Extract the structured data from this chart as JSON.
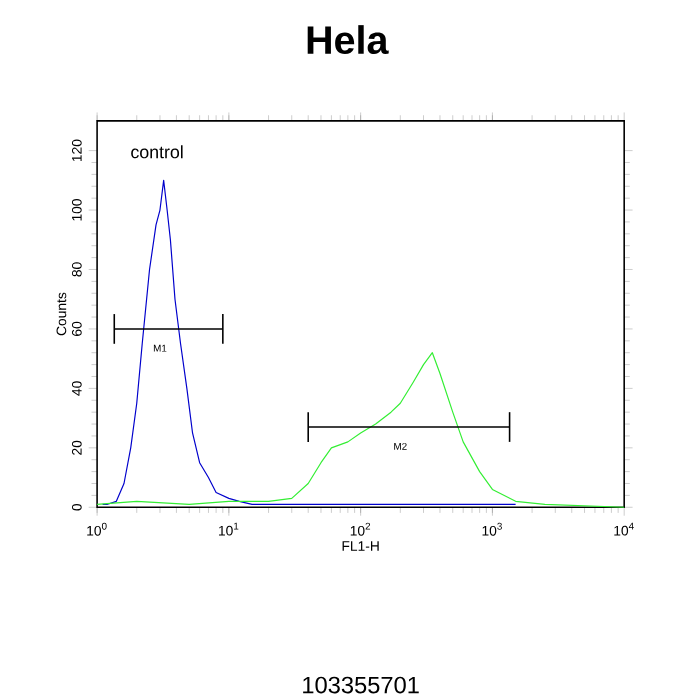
{
  "chart_data": {
    "type": "line",
    "title": "Hela",
    "xlabel": "FL1-H",
    "ylabel": "Counts",
    "log": "x",
    "marker": "none",
    "line_style": "solid",
    "xlim": [
      1,
      10000
    ],
    "ylim": [
      0,
      130
    ],
    "xticks": [
      {
        "value": 1,
        "label": "10$^{0}$"
      },
      {
        "value": 10,
        "label": "10$^{1}$"
      },
      {
        "value": 100,
        "label": "10$^{2}$"
      },
      {
        "value": 1000,
        "label": "10$^{3}$"
      },
      {
        "value": 10000,
        "label": "10$^{4}$"
      }
    ],
    "yticks": [
      0,
      20,
      40,
      60,
      80,
      100,
      120
    ],
    "series": [
      {
        "name": "control",
        "color": "#0000cc",
        "x": [
          1.1,
          1.2,
          1.4,
          1.6,
          1.8,
          2.0,
          2.2,
          2.5,
          2.8,
          3.0,
          3.2,
          3.4,
          3.6,
          3.9,
          4.3,
          4.8,
          5.3,
          6,
          7,
          8,
          10,
          12,
          15,
          20,
          30,
          100,
          1500
        ],
        "values": [
          1,
          1,
          2,
          8,
          20,
          35,
          55,
          80,
          95,
          100,
          110,
          100,
          90,
          70,
          55,
          40,
          25,
          15,
          10,
          5,
          3,
          2,
          1,
          1,
          1,
          1,
          1
        ]
      },
      {
        "color": "#33ee33",
        "x": [
          1,
          2,
          5,
          10,
          20,
          30,
          40,
          50,
          60,
          80,
          100,
          130,
          170,
          200,
          250,
          300,
          350,
          400,
          500,
          600,
          800,
          1000,
          1500,
          2500,
          10000
        ],
        "values": [
          1,
          2,
          1,
          2,
          2,
          3,
          8,
          15,
          20,
          22,
          25,
          28,
          32,
          35,
          42,
          48,
          52,
          45,
          32,
          22,
          12,
          6,
          2,
          1,
          0
        ]
      },
      {
        "color": "#000000",
        "x": [
          1.35,
          9
        ],
        "values": [
          60,
          60
        ],
        "errors": [
          5,
          5
        ]
      },
      {
        "color": "#000000",
        "x": [
          40,
          1350
        ],
        "values": [
          27,
          27
        ],
        "errors": [
          5,
          5
        ]
      }
    ],
    "annotations": [
      {
        "text": "M1",
        "x": 3,
        "y": 57
      },
      {
        "text": "M2",
        "x": 200,
        "y": 24
      },
      "103355701"
    ]
  }
}
